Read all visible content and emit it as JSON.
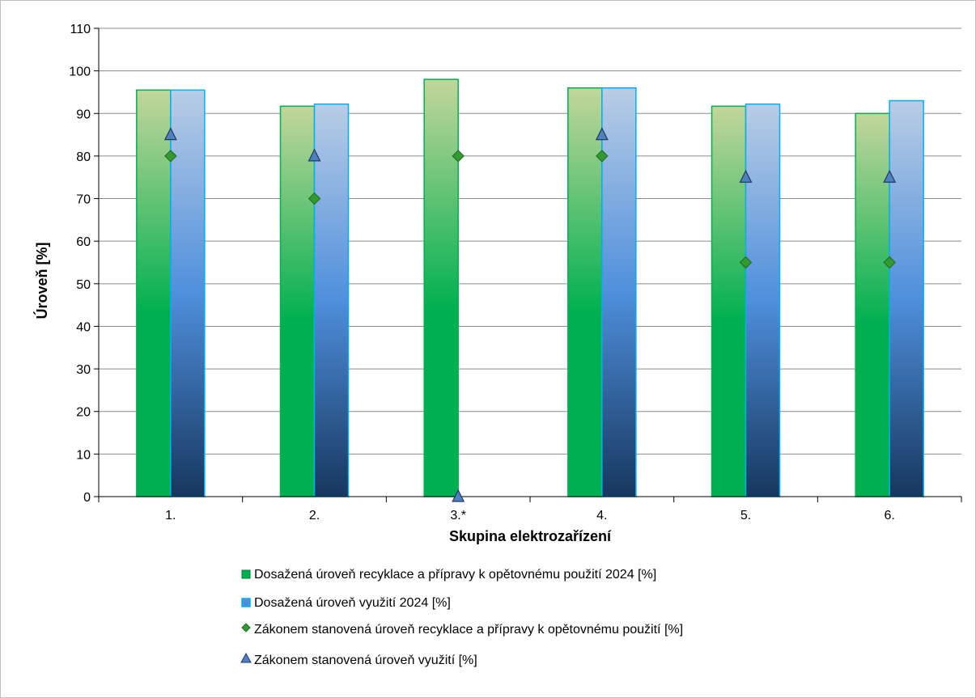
{
  "chart_data": {
    "type": "bar",
    "title": "",
    "xlabel": "Skupina elektrozařízení",
    "ylabel": "Úroveň  [%]",
    "categories": [
      "1.",
      "2.",
      "3.*",
      "4.",
      "5.",
      "6."
    ],
    "ylim": [
      0,
      110
    ],
    "ytick_step": 10,
    "grid": true,
    "legend_position": "bottom",
    "series": [
      {
        "name": "Dosažená úroveň recyklace a přípravy k opětovnému použití 2024 [%]",
        "kind": "bar",
        "values": [
          95.5,
          91.7,
          98,
          96,
          91.7,
          90
        ],
        "colors": {
          "top": "#c3d69b",
          "bottom": "#00b050",
          "edge": "#00b050"
        }
      },
      {
        "name": "Dosažená úroveň využití 2024 [%]",
        "kind": "bar",
        "values": [
          95.5,
          92.2,
          null,
          96,
          92.2,
          93
        ],
        "colors": {
          "top": "#b9cde5",
          "mid": "#4f8fdc",
          "bottom": "#17375e",
          "edge": "#00b0f0"
        }
      },
      {
        "name": "Zákonem stanovená úroveň recyklace a přípravy k opětovnému použití [%]",
        "kind": "marker-diamond",
        "values": [
          80,
          70,
          80,
          80,
          55,
          55
        ],
        "colors": {
          "fill": "#339933",
          "edge": "#1e6b1e"
        }
      },
      {
        "name": "Zákonem stanovená úroveň využití [%]",
        "kind": "marker-triangle",
        "values": [
          85,
          80,
          0,
          85,
          75,
          75
        ],
        "colors": {
          "fill": "#4f81bd",
          "edge": "#1f3864"
        }
      }
    ]
  }
}
